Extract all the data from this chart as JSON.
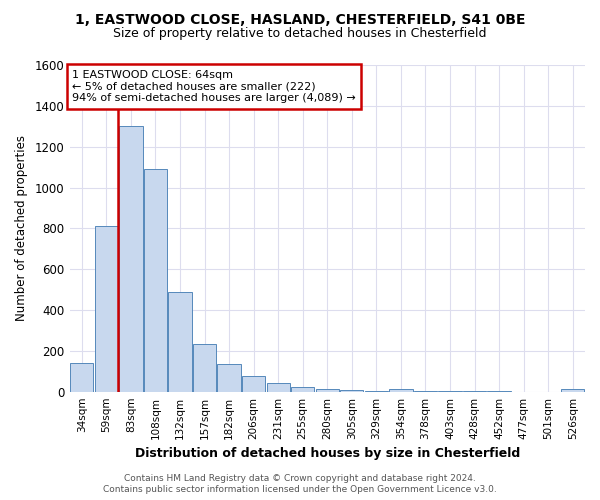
{
  "title1": "1, EASTWOOD CLOSE, HASLAND, CHESTERFIELD, S41 0BE",
  "title2": "Size of property relative to detached houses in Chesterfield",
  "xlabel": "Distribution of detached houses by size in Chesterfield",
  "ylabel": "Number of detached properties",
  "footer1": "Contains HM Land Registry data © Crown copyright and database right 2024.",
  "footer2": "Contains public sector information licensed under the Open Government Licence v3.0.",
  "annotation_line1": "1 EASTWOOD CLOSE: 64sqm",
  "annotation_line2": "← 5% of detached houses are smaller (222)",
  "annotation_line3": "94% of semi-detached houses are larger (4,089) →",
  "categories": [
    "34sqm",
    "59sqm",
    "83sqm",
    "108sqm",
    "132sqm",
    "157sqm",
    "182sqm",
    "206sqm",
    "231sqm",
    "255sqm",
    "280sqm",
    "305sqm",
    "329sqm",
    "354sqm",
    "378sqm",
    "403sqm",
    "428sqm",
    "452sqm",
    "477sqm",
    "501sqm",
    "526sqm"
  ],
  "values": [
    140,
    810,
    1300,
    1090,
    490,
    235,
    135,
    75,
    42,
    22,
    15,
    8,
    5,
    14,
    3,
    2,
    1,
    1,
    0,
    0,
    13
  ],
  "bar_color": "#c8d8ee",
  "bar_edge_color": "#5588bb",
  "highlight_color": "#cc0000",
  "red_line_index": 1,
  "ylim": [
    0,
    1600
  ],
  "yticks": [
    0,
    200,
    400,
    600,
    800,
    1000,
    1200,
    1400,
    1600
  ],
  "bg_color": "#ffffff",
  "plot_bg_color": "#ffffff",
  "grid_color": "#ddddee",
  "annotation_box_color": "#cc0000",
  "title1_fontsize": 10,
  "title2_fontsize": 9.5
}
